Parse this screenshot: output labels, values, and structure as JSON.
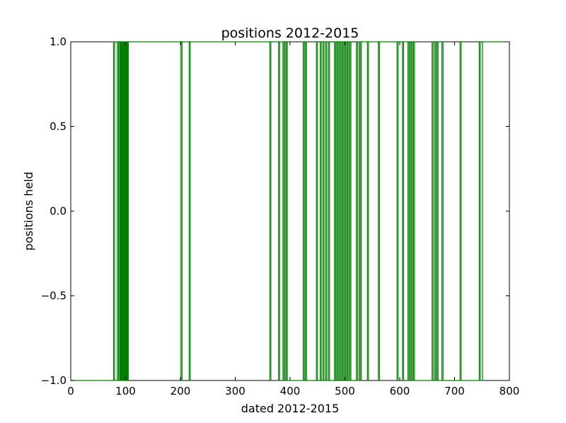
{
  "chart_data": {
    "type": "line",
    "title": "positions 2012-2015",
    "xlabel": "dated 2012-2015",
    "ylabel": "positions held",
    "xlim": [
      0,
      800
    ],
    "ylim": [
      -1.0,
      1.0
    ],
    "x_ticks": [
      "0",
      "100",
      "200",
      "300",
      "400",
      "500",
      "600",
      "700",
      "800"
    ],
    "y_ticks": [
      "1.0",
      "0.5",
      "0.0",
      "−0.5",
      "−1.0"
    ],
    "x_tick_values": [
      0,
      100,
      200,
      300,
      400,
      500,
      600,
      700,
      800
    ],
    "y_tick_values": [
      1.0,
      0.5,
      0.0,
      -0.5,
      -1.0
    ],
    "grid": false,
    "series": [
      {
        "color": "#008000",
        "step_times": [
          78,
          80,
          85,
          87,
          89,
          90,
          91,
          92,
          93,
          94,
          95,
          96,
          97,
          98,
          99,
          100,
          101,
          102,
          103,
          104,
          105,
          201,
          203,
          216,
          218,
          363,
          365,
          379,
          381,
          387,
          389,
          391,
          393,
          395,
          424,
          426,
          428,
          430,
          448,
          450,
          455,
          457,
          460,
          462,
          465,
          467,
          470,
          472,
          481,
          483,
          485,
          487,
          489,
          491,
          493,
          495,
          497,
          499,
          501,
          503,
          505,
          507,
          509,
          511,
          521,
          523,
          526,
          528,
          530,
          541,
          543,
          561,
          563,
          595,
          597,
          605,
          607,
          615,
          617,
          619,
          621,
          623,
          625,
          627,
          659,
          661,
          664,
          666,
          668,
          670,
          677,
          679,
          710,
          712,
          745,
          747,
          751
        ],
        "start_value": -1,
        "x_end": 790
      }
    ]
  }
}
